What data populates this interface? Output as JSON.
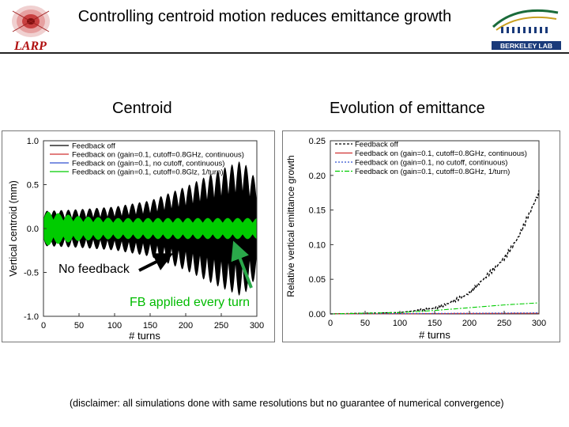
{
  "header": {
    "title": "Controlling centroid motion reduces emittance growth",
    "left_logo": "LARP",
    "right_logo": "BERKELEY LAB"
  },
  "left_heading": "Centroid",
  "right_heading": "Evolution of emittance",
  "annotations": {
    "no_feedback": "No feedback",
    "fb_every_turn": "FB applied every turn"
  },
  "disclaimer": "(disclaimer: all simulations done  with same resolutions but no guarantee of numerical convergence)",
  "colors": {
    "black": "#000000",
    "green": "#00cc00",
    "red": "#d03030",
    "blue": "#3050d0",
    "arrow_green": "#2aa84a"
  },
  "chart_data": [
    {
      "type": "line",
      "title": "Centroid",
      "xlabel": "# turns",
      "ylabel": "Vertical centroid (mm)",
      "xlim": [
        0,
        300
      ],
      "ylim": [
        -1.0,
        1.0
      ],
      "xticks": [
        0,
        50,
        100,
        150,
        200,
        250,
        300
      ],
      "yticks": [
        1.0,
        0.5,
        0.0,
        -0.5,
        -1.0
      ],
      "ytick_labels": [
        "1.0",
        "0.5",
        "0.0",
        "-0.5",
        "-1.0"
      ],
      "legend": [
        "Feedback off",
        "Feedback on (gain=0.1, cutoff=0.8GHz, continuous)",
        "Feedback on (gain=0.1, no cutoff, continuous)",
        "Feedback on (gain=0.1, cutoff=0.8Glz, 1/turn)"
      ],
      "series": [
        {
          "name": "Feedback off",
          "color": "#000000",
          "x": [
            0,
            50,
            100,
            150,
            200,
            250,
            280,
            300
          ],
          "amplitude": [
            0.2,
            0.22,
            0.25,
            0.32,
            0.48,
            0.68,
            0.78,
            0.55
          ]
        },
        {
          "name": "Feedback on, 1/turn",
          "color": "#00cc00",
          "x": [
            0,
            50,
            100,
            150,
            200,
            250,
            300
          ],
          "amplitude": [
            0.2,
            0.14,
            0.12,
            0.12,
            0.12,
            0.12,
            0.12
          ]
        }
      ]
    },
    {
      "type": "line",
      "title": "Evolution of emittance",
      "xlabel": "# turns",
      "ylabel": "Relative vertical emittance growth",
      "xlim": [
        0,
        300
      ],
      "ylim": [
        0,
        0.25
      ],
      "xticks": [
        0,
        50,
        100,
        150,
        200,
        250,
        300
      ],
      "yticks": [
        0.0,
        0.05,
        0.1,
        0.15,
        0.2,
        0.25
      ],
      "ytick_labels": [
        "0.00",
        "0.05",
        "0.10",
        "0.15",
        "0.20",
        "0.25"
      ],
      "legend": [
        "Feedback off",
        "Feedback on (gain=0.1, cutoff=0.8GHz, continuous)",
        "Feedback on (gain=0.1, no cutoff, continuous)",
        "Feedback on (gain=0.1, cutoff=0.8GHz, 1/turn)"
      ],
      "series": [
        {
          "name": "Feedback off",
          "color": "#000000",
          "x": [
            0,
            100,
            150,
            170,
            200,
            220,
            250,
            270,
            300
          ],
          "y": [
            0.0,
            0.002,
            0.008,
            0.015,
            0.03,
            0.05,
            0.08,
            0.11,
            0.175
          ]
        },
        {
          "name": "Feedback on, cutoff, continuous",
          "color": "#d03030",
          "x": [
            0,
            300
          ],
          "y": [
            0.0,
            0.001
          ]
        },
        {
          "name": "Feedback on, no cutoff, continuous",
          "color": "#3050d0",
          "x": [
            0,
            300
          ],
          "y": [
            0.0,
            0.0015
          ]
        },
        {
          "name": "Feedback on, 1/turn",
          "color": "#00cc00",
          "x": [
            0,
            100,
            150,
            200,
            250,
            300
          ],
          "y": [
            0.0,
            0.002,
            0.005,
            0.009,
            0.013,
            0.016
          ]
        }
      ]
    }
  ]
}
